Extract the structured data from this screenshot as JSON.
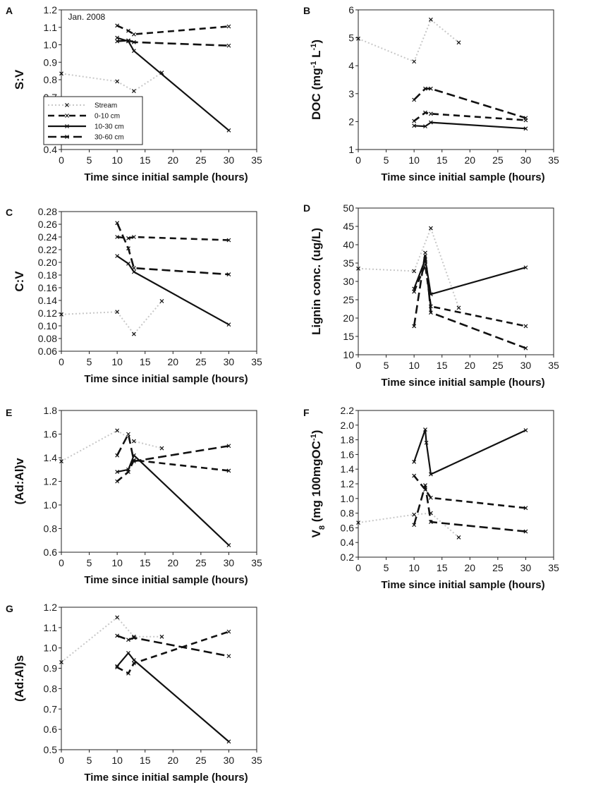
{
  "figure": {
    "background": "#ffffff",
    "ink": "#111111"
  },
  "chart_data": [
    {
      "id": "A",
      "panel_label": "A",
      "type": "line",
      "title": "",
      "annotation": "Jan. 2008",
      "xlabel": "Time since initial sample (hours)",
      "ylabel": "S:V",
      "xlim": [
        0,
        35
      ],
      "ylim": [
        0.4,
        1.2
      ],
      "xticks": [
        0,
        5,
        10,
        15,
        20,
        25,
        30,
        35
      ],
      "yticks": [
        "0.4",
        "0.5",
        "0.6",
        "0.7",
        "0.8",
        "0.9",
        "1.0",
        "1.1",
        "1.2"
      ],
      "legend": [
        "Stream",
        "0-10 cm",
        "10-30 cm",
        "30-60 cm"
      ],
      "series": [
        {
          "name": "Stream",
          "x": [
            0,
            10,
            13,
            18
          ],
          "y": [
            0.835,
            0.79,
            0.735,
            0.84
          ]
        },
        {
          "name": "0-10 cm",
          "x": [
            10,
            12,
            13,
            30
          ],
          "y": [
            1.11,
            1.08,
            1.06,
            1.105
          ]
        },
        {
          "name": "10-30 cm",
          "x": [
            10,
            12,
            13,
            30
          ],
          "y": [
            1.04,
            1.02,
            0.965,
            0.51
          ]
        },
        {
          "name": "30-60 cm",
          "x": [
            10,
            12,
            13,
            30
          ],
          "y": [
            1.02,
            1.025,
            1.015,
            0.995
          ]
        }
      ]
    },
    {
      "id": "B",
      "panel_label": "B",
      "type": "line",
      "xlabel": "Time since initial sample (hours)",
      "ylabel": "DOC (mg-1 L-1)",
      "xlim": [
        0,
        35
      ],
      "ylim": [
        1,
        6
      ],
      "xticks": [
        0,
        5,
        10,
        15,
        20,
        25,
        30,
        35
      ],
      "yticks": [
        "1",
        "2",
        "3",
        "4",
        "5",
        "6"
      ],
      "series": [
        {
          "name": "Stream",
          "x": [
            0,
            10,
            13,
            18
          ],
          "y": [
            4.97,
            4.15,
            5.65,
            4.83
          ]
        },
        {
          "name": "0-10 cm",
          "x": [
            10,
            12,
            13,
            30
          ],
          "y": [
            2.02,
            2.32,
            2.28,
            2.05
          ]
        },
        {
          "name": "10-30 cm",
          "x": [
            10,
            12,
            13,
            30
          ],
          "y": [
            1.85,
            1.83,
            1.97,
            1.75
          ]
        },
        {
          "name": "30-60 cm",
          "x": [
            10,
            12,
            13,
            30
          ],
          "y": [
            2.78,
            3.18,
            3.18,
            2.13
          ]
        }
      ]
    },
    {
      "id": "C",
      "panel_label": "C",
      "type": "line",
      "xlabel": "Time since initial sample (hours)",
      "ylabel": "C:V",
      "xlim": [
        0,
        35
      ],
      "ylim": [
        0.06,
        0.28
      ],
      "xticks": [
        0,
        5,
        10,
        15,
        20,
        25,
        30,
        35
      ],
      "yticks": [
        "0.06",
        "0.08",
        "0.10",
        "0.12",
        "0.14",
        "0.16",
        "0.18",
        "0.20",
        "0.22",
        "0.24",
        "0.26",
        "0.28"
      ],
      "series": [
        {
          "name": "Stream",
          "x": [
            0,
            10,
            13,
            18
          ],
          "y": [
            0.118,
            0.122,
            0.087,
            0.139
          ]
        },
        {
          "name": "0-10 cm",
          "x": [
            10,
            12,
            13,
            30
          ],
          "y": [
            0.24,
            0.238,
            0.24,
            0.235
          ]
        },
        {
          "name": "10-30 cm",
          "x": [
            10,
            12,
            13,
            30
          ],
          "y": [
            0.21,
            0.198,
            0.185,
            0.102
          ]
        },
        {
          "name": "30-60 cm",
          "x": [
            10,
            12,
            13,
            30
          ],
          "y": [
            0.262,
            0.222,
            0.191,
            0.181
          ]
        }
      ]
    },
    {
      "id": "D",
      "panel_label": "D",
      "type": "line",
      "xlabel": "Time since initial sample (hours)",
      "ylabel": "Lignin conc. (ug/L)",
      "xlim": [
        0,
        35
      ],
      "ylim": [
        10,
        50
      ],
      "xticks": [
        0,
        5,
        10,
        15,
        20,
        25,
        30,
        35
      ],
      "yticks": [
        "10",
        "15",
        "20",
        "25",
        "30",
        "35",
        "40",
        "45",
        "50"
      ],
      "series": [
        {
          "name": "Stream",
          "x": [
            0,
            10,
            13,
            18
          ],
          "y": [
            33.5,
            32.8,
            44.5,
            22.8
          ]
        },
        {
          "name": "0-10 cm",
          "x": [
            10,
            12,
            13,
            30
          ],
          "y": [
            27.2,
            34.5,
            23.2,
            17.8
          ]
        },
        {
          "name": "10-30 cm",
          "x": [
            10,
            12,
            13,
            30
          ],
          "y": [
            28.0,
            36.0,
            26.5,
            33.8
          ]
        },
        {
          "name": "30-60 cm",
          "x": [
            10,
            12,
            13,
            30
          ],
          "y": [
            17.8,
            37.8,
            21.5,
            11.8
          ]
        }
      ]
    },
    {
      "id": "E",
      "panel_label": "E",
      "type": "line",
      "xlabel": "Time since initial sample (hours)",
      "ylabel": "(Ad:Al)v",
      "xlim": [
        0,
        35
      ],
      "ylim": [
        0.6,
        1.8
      ],
      "xticks": [
        0,
        5,
        10,
        15,
        20,
        25,
        30,
        35
      ],
      "yticks": [
        "0.6",
        "0.8",
        "1.0",
        "1.2",
        "1.4",
        "1.6",
        "1.8"
      ],
      "series": [
        {
          "name": "Stream",
          "x": [
            0,
            10,
            13,
            18
          ],
          "y": [
            1.37,
            1.63,
            1.54,
            1.48
          ]
        },
        {
          "name": "0-10 cm",
          "x": [
            10,
            12,
            13,
            30
          ],
          "y": [
            1.2,
            1.28,
            1.38,
            1.29
          ]
        },
        {
          "name": "10-30 cm",
          "x": [
            10,
            12,
            13,
            30
          ],
          "y": [
            1.28,
            1.3,
            1.42,
            0.66
          ]
        },
        {
          "name": "30-60 cm",
          "x": [
            10,
            12,
            13,
            30
          ],
          "y": [
            1.42,
            1.6,
            1.37,
            1.5
          ]
        }
      ]
    },
    {
      "id": "F",
      "panel_label": "F",
      "type": "line",
      "xlabel": "Time since initial sample (hours)",
      "ylabel": "V8 (mg 100mgOC-1)",
      "xlim": [
        0,
        35
      ],
      "ylim": [
        0.2,
        2.2
      ],
      "xticks": [
        0,
        5,
        10,
        15,
        20,
        25,
        30,
        35
      ],
      "yticks": [
        "0.2",
        "0.4",
        "0.6",
        "0.8",
        "1.0",
        "1.2",
        "1.4",
        "1.6",
        "1.8",
        "2.0",
        "2.2"
      ],
      "series": [
        {
          "name": "Stream",
          "x": [
            0,
            10,
            13,
            18
          ],
          "y": [
            0.67,
            0.78,
            0.8,
            0.47
          ]
        },
        {
          "name": "0-10 cm",
          "x": [
            10,
            12,
            13,
            30
          ],
          "y": [
            1.31,
            1.12,
            1.01,
            0.87
          ]
        },
        {
          "name": "10-30 cm",
          "x": [
            10,
            12,
            12.2,
            13,
            30
          ],
          "y": [
            1.5,
            1.94,
            1.76,
            1.33,
            1.93
          ]
        },
        {
          "name": "30-60 cm",
          "x": [
            10,
            12,
            13,
            30
          ],
          "y": [
            0.64,
            1.18,
            0.68,
            0.55
          ]
        }
      ]
    },
    {
      "id": "G",
      "panel_label": "G",
      "type": "line",
      "xlabel": "Time since initial sample (hours)",
      "ylabel": "(Ad:Al)s",
      "xlim": [
        0,
        35
      ],
      "ylim": [
        0.5,
        1.2
      ],
      "xticks": [
        0,
        5,
        10,
        15,
        20,
        25,
        30,
        35
      ],
      "yticks": [
        "0.5",
        "0.6",
        "0.7",
        "0.8",
        "0.9",
        "1.0",
        "1.1",
        "1.2"
      ],
      "series": [
        {
          "name": "Stream",
          "x": [
            0,
            10,
            13,
            18
          ],
          "y": [
            0.93,
            1.15,
            1.055,
            1.055
          ]
        },
        {
          "name": "0-10 cm",
          "x": [
            10,
            12,
            13,
            30
          ],
          "y": [
            0.905,
            0.875,
            0.925,
            1.08
          ]
        },
        {
          "name": "10-30 cm",
          "x": [
            10,
            12,
            13,
            30
          ],
          "y": [
            0.91,
            0.975,
            0.94,
            0.54
          ]
        },
        {
          "name": "30-60 cm",
          "x": [
            10,
            12,
            13,
            30
          ],
          "y": [
            1.06,
            1.04,
            1.05,
            0.96
          ]
        }
      ]
    }
  ]
}
